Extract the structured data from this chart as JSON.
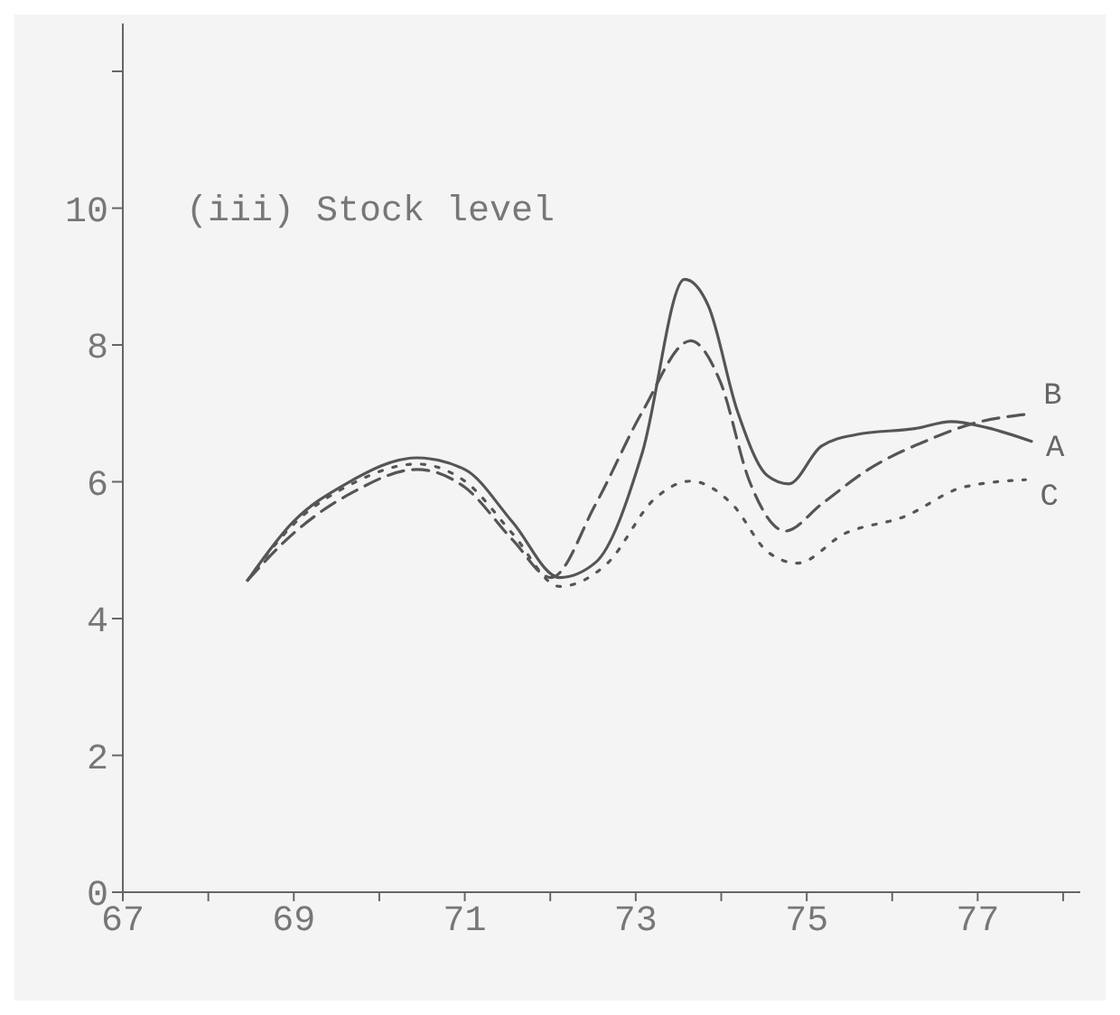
{
  "chart_data": {
    "type": "line",
    "title": "(iii) Stock level",
    "xlim": [
      67,
      78.2
    ],
    "xticks": [
      67,
      {
        "value": 68,
        "label": null
      },
      69,
      {
        "value": 70,
        "label": null
      },
      71,
      {
        "value": 72,
        "label": null
      },
      73,
      {
        "value": 74,
        "label": null
      },
      75,
      {
        "value": 76,
        "label": null
      },
      77,
      {
        "value": 78,
        "label": null
      }
    ],
    "ylim": [
      0,
      12.7
    ],
    "yticks": [
      0,
      2,
      4,
      6,
      8,
      10,
      {
        "value": 12,
        "label": null
      }
    ],
    "grid": false,
    "legend": false,
    "marker": "none",
    "series": [
      {
        "name": "A",
        "color": "#555555",
        "line_style": "solid",
        "x": [
          68.46,
          68.99,
          69.61,
          70.44,
          71.0,
          71.56,
          72.11,
          72.53,
          73.08,
          73.57,
          73.85,
          74.19,
          74.54,
          74.79,
          75.17,
          75.58,
          76.28,
          76.69,
          77.11,
          77.63
        ],
        "values": [
          4.56,
          5.41,
          5.97,
          6.35,
          6.18,
          5.41,
          4.6,
          4.82,
          6.44,
          8.96,
          8.57,
          7.03,
          6.09,
          5.97,
          6.52,
          6.69,
          6.78,
          6.88,
          6.79,
          6.59
        ]
      },
      {
        "name": "B",
        "color": "#555555",
        "line_style": "dashed",
        "x": [
          68.46,
          68.99,
          69.68,
          70.44,
          71.0,
          71.56,
          72.01,
          72.53,
          73.08,
          73.64,
          73.99,
          74.33,
          74.75,
          75.17,
          75.72,
          76.42,
          76.97,
          77.6
        ],
        "values": [
          4.56,
          5.24,
          5.84,
          6.18,
          5.92,
          5.15,
          4.6,
          5.67,
          7.03,
          8.06,
          7.46,
          6.01,
          5.28,
          5.67,
          6.18,
          6.61,
          6.86,
          6.99
        ]
      },
      {
        "name": "C",
        "color": "#555555",
        "line_style": "dotted",
        "x": [
          68.46,
          68.99,
          69.68,
          70.44,
          71.0,
          71.56,
          72.11,
          72.67,
          73.22,
          73.64,
          74.13,
          74.54,
          74.89,
          75.44,
          76.14,
          76.83,
          77.56
        ],
        "values": [
          4.56,
          5.37,
          5.97,
          6.26,
          6.01,
          5.24,
          4.47,
          4.81,
          5.75,
          6.01,
          5.67,
          4.98,
          4.81,
          5.24,
          5.49,
          5.92,
          6.03
        ]
      }
    ]
  }
}
